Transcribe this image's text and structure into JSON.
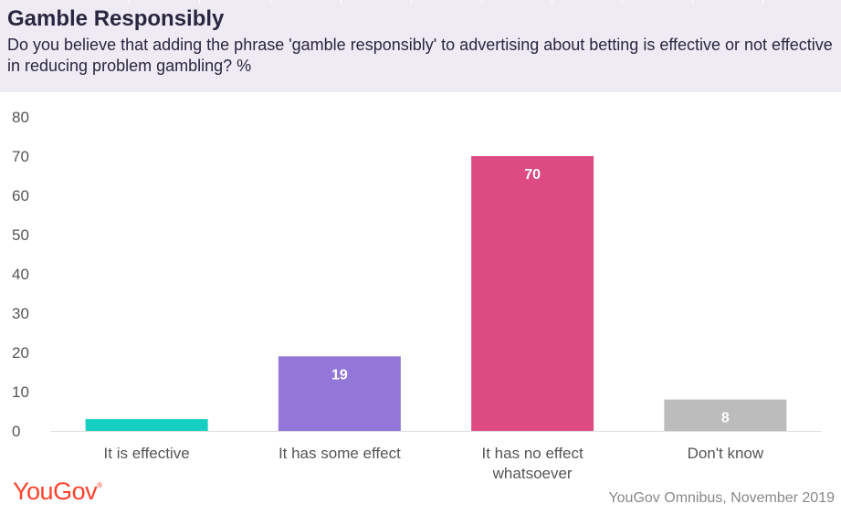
{
  "header": {
    "title": "Gamble Responsibly",
    "subtitle": "Do you believe that adding the phrase 'gamble responsibly' to advertising about betting is effective or not effective in reducing problem gambling? %"
  },
  "footer": {
    "logo": "YouGov",
    "source": "YouGov Omnibus, November 2019"
  },
  "colors": {
    "header_bg": "#eeebf5",
    "logo": "#ff412c"
  },
  "chart_data": {
    "type": "bar",
    "categories": [
      "It is effective",
      "It has some effect",
      "It has no effect whatsoever",
      "Don't know"
    ],
    "category_lines": [
      [
        "It is effective"
      ],
      [
        "It has some effect"
      ],
      [
        "It has no effect",
        "whatsoever"
      ],
      [
        "Don't know"
      ]
    ],
    "values": [
      3,
      19,
      70,
      8
    ],
    "colors": [
      "#16cfc3",
      "#9277d8",
      "#dd4b82",
      "#bcbcbc"
    ],
    "ylim": [
      0,
      80
    ],
    "yticks": [
      0,
      10,
      20,
      30,
      40,
      50,
      60,
      70,
      80
    ],
    "grid": false,
    "legend": "none"
  }
}
